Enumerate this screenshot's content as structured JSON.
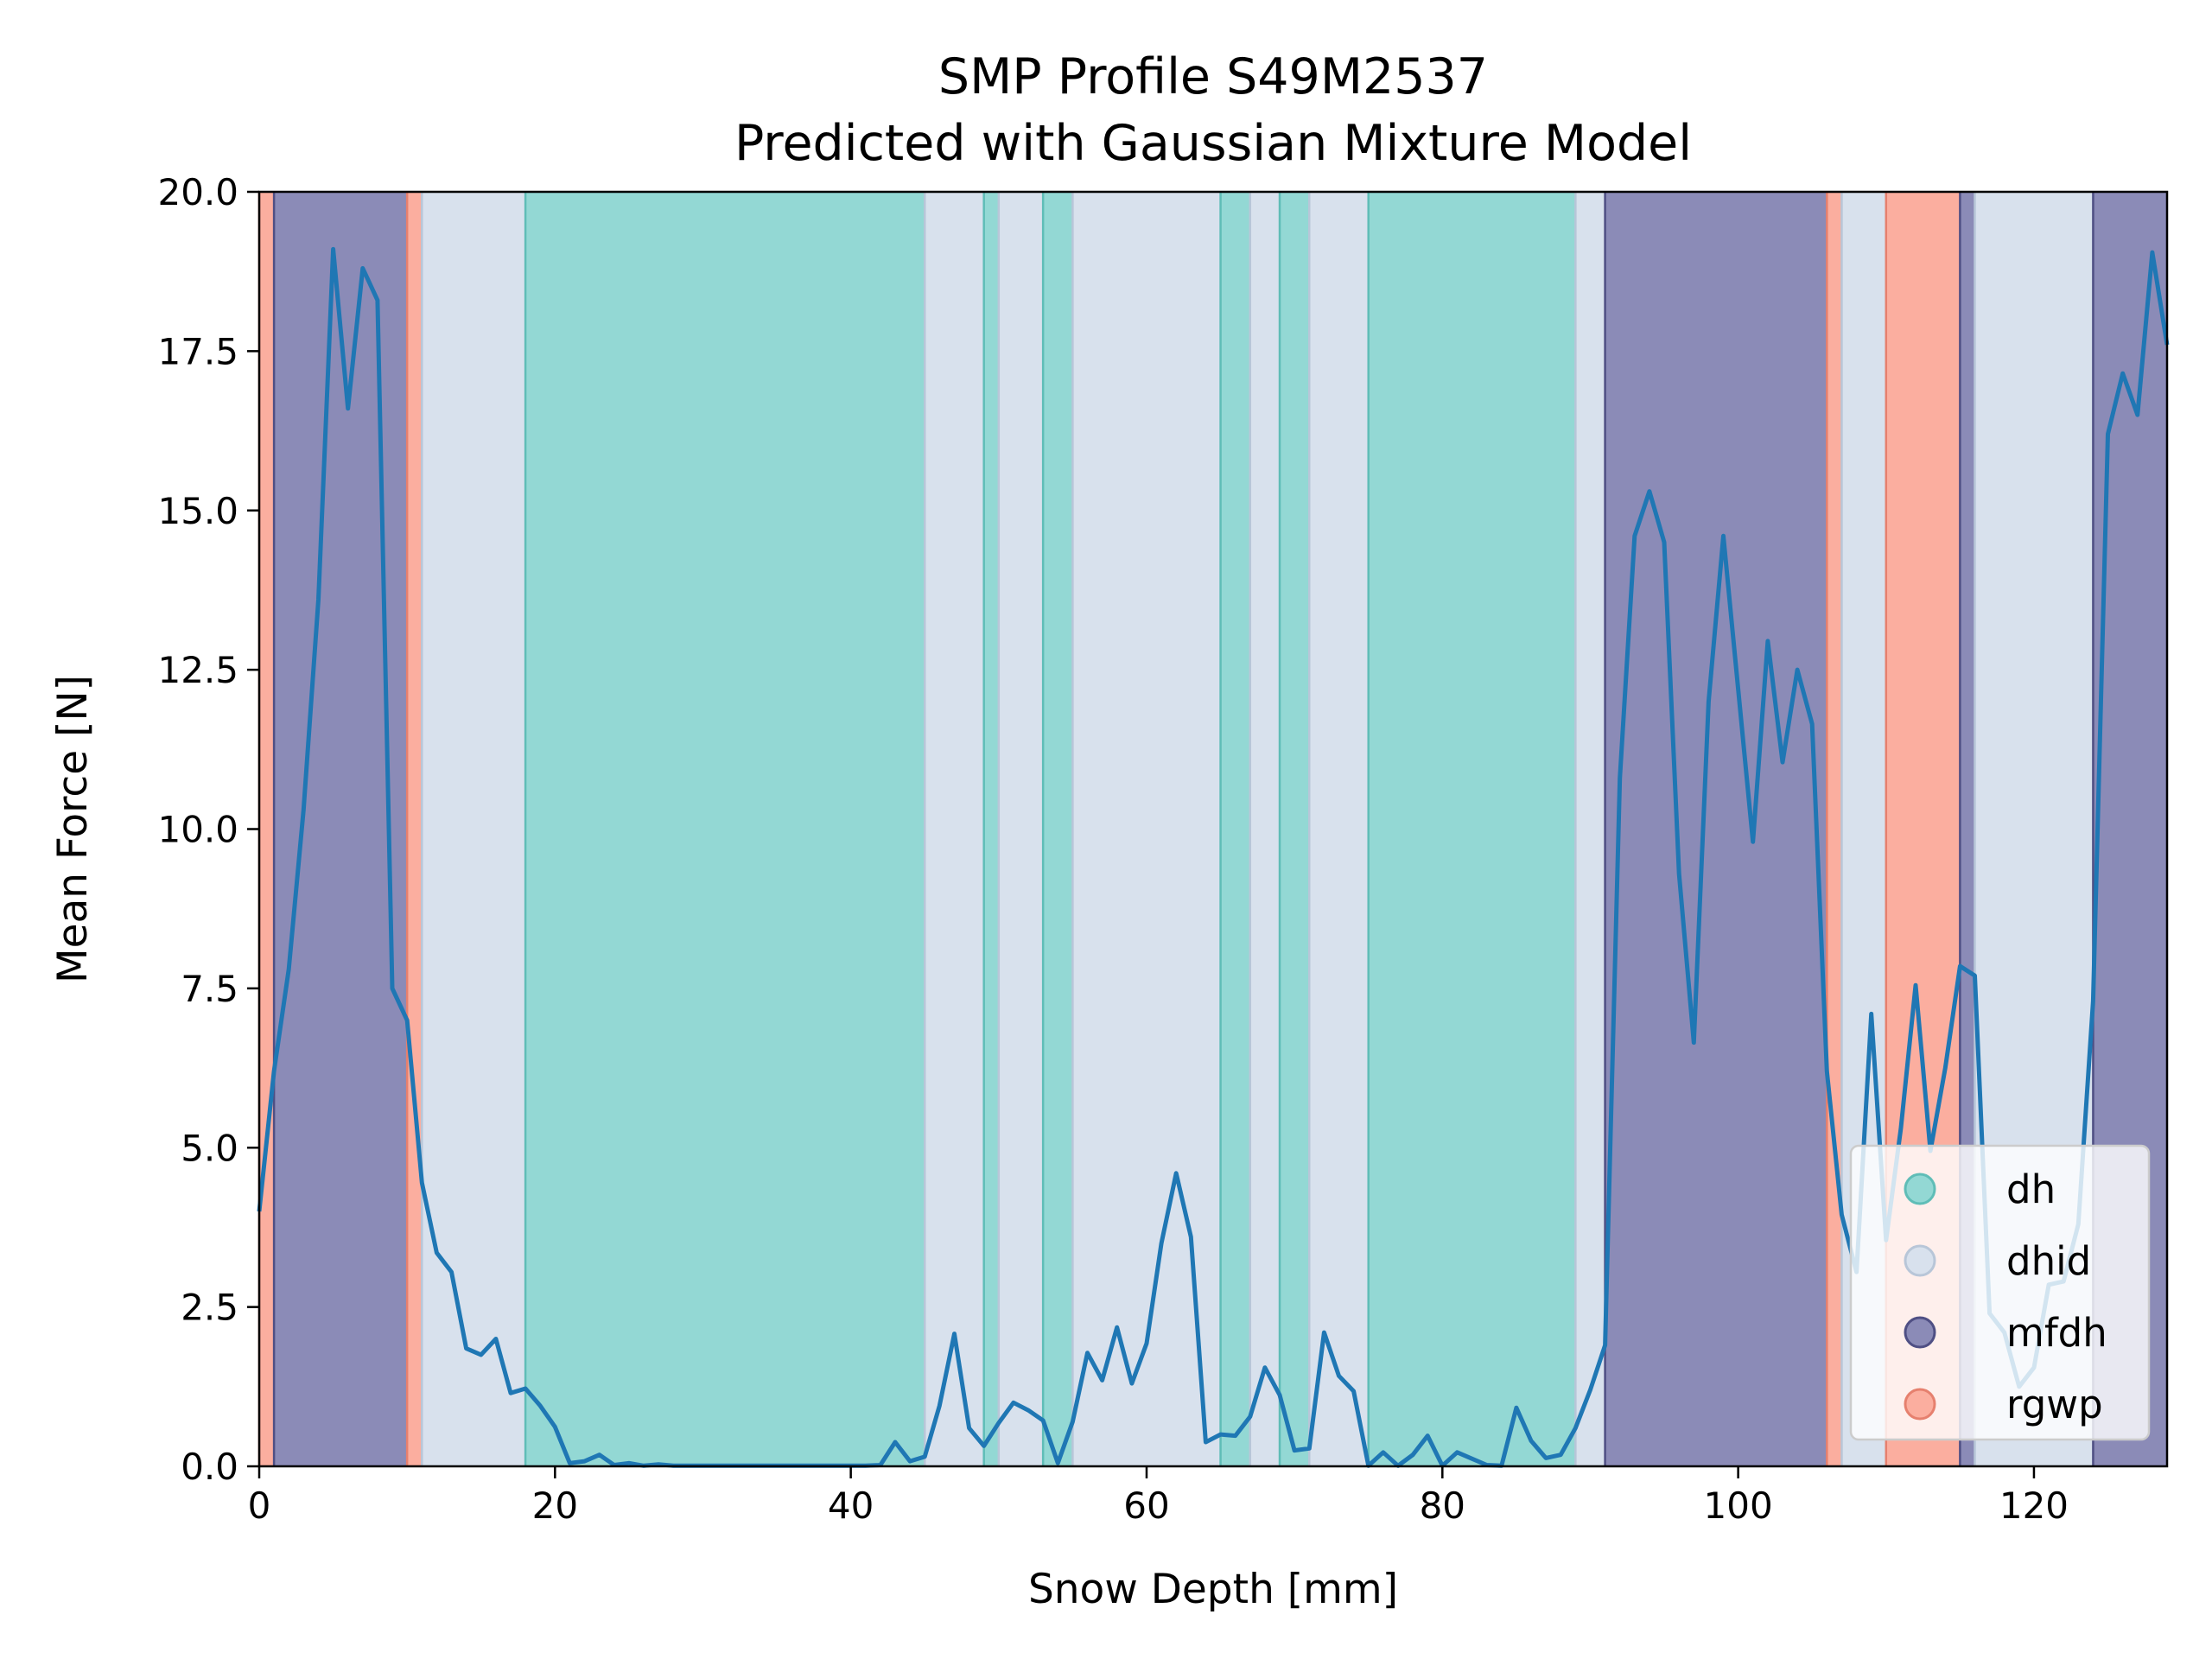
{
  "chart_data": {
    "type": "line",
    "title": "SMP Profile S49M2537",
    "subtitle": "Predicted with Gaussian Mixture Model",
    "xlabel": "Snow Depth [mm]",
    "ylabel": "Mean Force [N]",
    "xlim": [
      0,
      129
    ],
    "ylim": [
      0,
      20
    ],
    "xticks": [
      0,
      20,
      40,
      60,
      80,
      100,
      120
    ],
    "yticks": [
      0.0,
      2.5,
      5.0,
      7.5,
      10.0,
      12.5,
      15.0,
      17.5,
      20.0
    ],
    "xtick_labels": [
      "0",
      "20",
      "40",
      "60",
      "80",
      "100",
      "120"
    ],
    "ytick_labels": [
      "0.0",
      "2.5",
      "5.0",
      "7.5",
      "10.0",
      "12.5",
      "15.0",
      "17.5",
      "20.0"
    ],
    "grid": false,
    "legend_position": "bottom-right",
    "classes": [
      {
        "name": "dh",
        "color": "#93d8d4",
        "edge": "#5fbdb7"
      },
      {
        "name": "dhid",
        "color": "#d8e1ed",
        "edge": "#b8c6d8"
      },
      {
        "name": "mfdh",
        "color": "#8b8bb7",
        "edge": "#4f4f84"
      },
      {
        "name": "rgwp",
        "color": "#fbae9f",
        "edge": "#e6806e"
      }
    ],
    "segments": [
      {
        "class": "rgwp",
        "start": 0,
        "end": 1
      },
      {
        "class": "mfdh",
        "start": 1,
        "end": 10
      },
      {
        "class": "rgwp",
        "start": 10,
        "end": 11
      },
      {
        "class": "dhid",
        "start": 11,
        "end": 18
      },
      {
        "class": "dh",
        "start": 18,
        "end": 45
      },
      {
        "class": "dhid",
        "start": 45,
        "end": 49
      },
      {
        "class": "dh",
        "start": 49,
        "end": 50
      },
      {
        "class": "dhid",
        "start": 50,
        "end": 53
      },
      {
        "class": "dh",
        "start": 53,
        "end": 55
      },
      {
        "class": "dhid",
        "start": 55,
        "end": 65
      },
      {
        "class": "dh",
        "start": 65,
        "end": 67
      },
      {
        "class": "dhid",
        "start": 67,
        "end": 69
      },
      {
        "class": "dh",
        "start": 69,
        "end": 71
      },
      {
        "class": "dhid",
        "start": 71,
        "end": 75
      },
      {
        "class": "dh",
        "start": 75,
        "end": 89
      },
      {
        "class": "dhid",
        "start": 89,
        "end": 91
      },
      {
        "class": "mfdh",
        "start": 91,
        "end": 106
      },
      {
        "class": "rgwp",
        "start": 106,
        "end": 107
      },
      {
        "class": "dhid",
        "start": 107,
        "end": 110
      },
      {
        "class": "rgwp",
        "start": 110,
        "end": 115
      },
      {
        "class": "mfdh",
        "start": 115,
        "end": 116
      },
      {
        "class": "dhid",
        "start": 116,
        "end": 124
      },
      {
        "class": "mfdh",
        "start": 124,
        "end": 129
      }
    ],
    "series": [
      {
        "color": "#1f77b4",
        "x": [
          0,
          1,
          2,
          3,
          4,
          5,
          6,
          7,
          8,
          9,
          10,
          11,
          12,
          13,
          14,
          15,
          16,
          17,
          18,
          19,
          20,
          21,
          22,
          23,
          24,
          25,
          26,
          27,
          28,
          29,
          30,
          31,
          32,
          33,
          34,
          35,
          36,
          37,
          38,
          39,
          40,
          41,
          42,
          43,
          44,
          45,
          46,
          47,
          48,
          49,
          50,
          51,
          52,
          53,
          54,
          55,
          56,
          57,
          58,
          59,
          60,
          61,
          62,
          63,
          64,
          65,
          66,
          67,
          68,
          69,
          70,
          71,
          72,
          73,
          74,
          75,
          76,
          77,
          78,
          79,
          80,
          81,
          82,
          83,
          84,
          85,
          86,
          87,
          88,
          89,
          90,
          91,
          92,
          93,
          94,
          95,
          96,
          97,
          98,
          99,
          100,
          101,
          102,
          103,
          104,
          105,
          106,
          107,
          108,
          109,
          110,
          111,
          112,
          113,
          114,
          115,
          116,
          117,
          118,
          119,
          120,
          121,
          122,
          123,
          124,
          125,
          126,
          127,
          128,
          129
        ],
        "y": [
          4.0,
          6.2,
          7.8,
          10.3,
          13.6,
          19.1,
          16.6,
          18.8,
          18.3,
          7.5,
          7.0,
          4.45,
          3.35,
          3.05,
          1.85,
          1.75,
          2.0,
          1.15,
          1.22,
          0.95,
          0.62,
          0.05,
          0.08,
          0.18,
          0.02,
          0.05,
          0.01,
          0.03,
          0.01,
          0.01,
          0.01,
          0.01,
          0.01,
          0.01,
          0.01,
          0.01,
          0.01,
          0.01,
          0.01,
          0.01,
          0.01,
          0.01,
          0.02,
          0.38,
          0.08,
          0.15,
          0.95,
          2.08,
          0.6,
          0.32,
          0.68,
          1.0,
          0.88,
          0.72,
          0.05,
          0.7,
          1.78,
          1.35,
          2.18,
          1.3,
          1.93,
          3.5,
          4.6,
          3.6,
          0.38,
          0.5,
          0.48,
          0.78,
          1.55,
          1.12,
          0.25,
          0.28,
          2.1,
          1.42,
          1.18,
          0.01,
          0.22,
          0.01,
          0.18,
          0.48,
          0.01,
          0.22,
          0.12,
          0.02,
          0.01,
          0.92,
          0.4,
          0.13,
          0.18,
          0.6,
          1.2,
          1.9,
          10.8,
          14.6,
          15.3,
          14.5,
          9.3,
          6.65,
          12.0,
          14.6,
          12.2,
          9.8,
          12.95,
          11.05,
          12.5,
          11.65,
          6.2,
          3.95,
          3.05,
          7.1,
          3.55,
          5.3,
          7.55,
          4.95,
          6.25,
          7.85,
          7.7,
          2.4,
          2.1,
          1.25,
          1.55,
          2.85,
          2.9,
          3.8,
          7.3,
          16.2,
          17.15,
          16.5,
          19.05,
          17.6
        ]
      }
    ]
  }
}
